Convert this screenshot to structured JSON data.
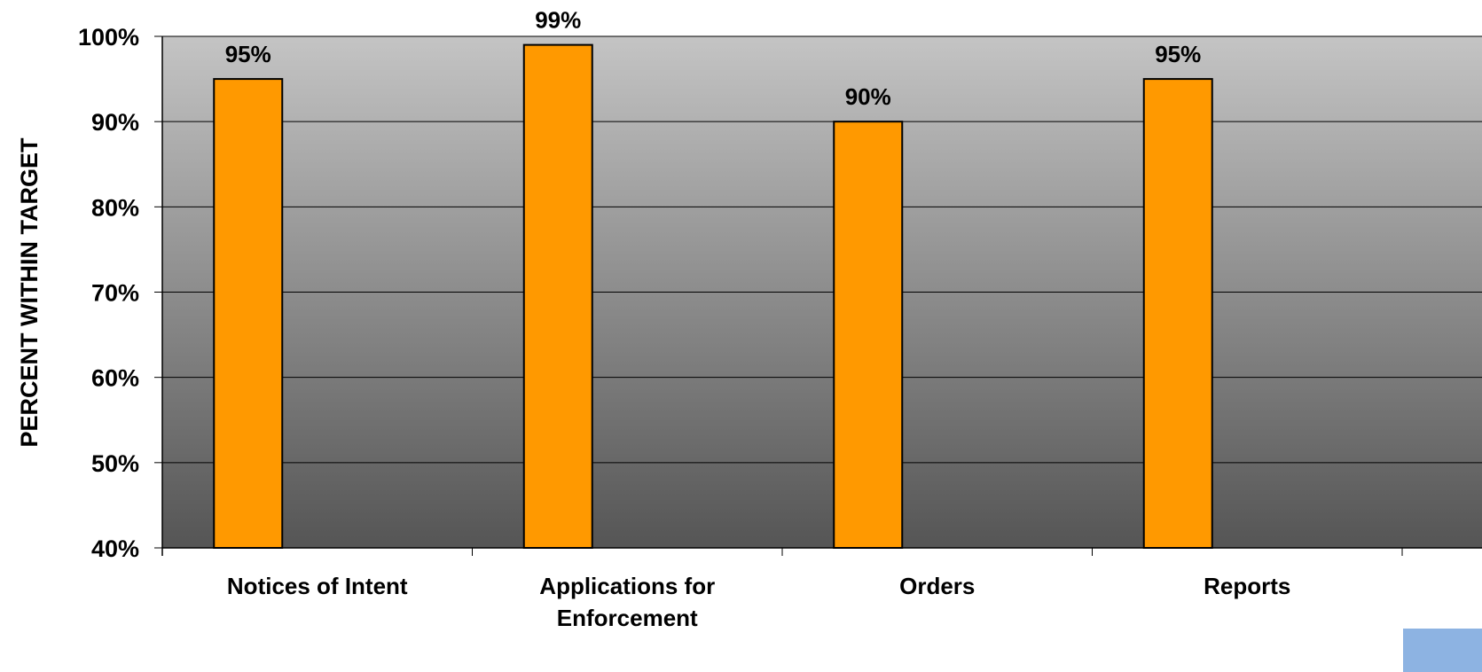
{
  "chart_data": {
    "type": "bar",
    "categories": [
      [
        "Notices of Intent"
      ],
      [
        "Applications for",
        "Enforcement"
      ],
      [
        "Orders"
      ],
      [
        "Reports"
      ]
    ],
    "values": [
      95,
      99,
      90,
      95
    ],
    "data_labels": [
      "95%",
      "99%",
      "90%",
      "95%"
    ],
    "ylabel": "PERCENT WITHIN TARGET",
    "xlabel": "",
    "ylim": [
      40,
      100
    ],
    "yticks": [
      40,
      50,
      60,
      70,
      80,
      90,
      100
    ],
    "ytick_labels": [
      "40%",
      "50%",
      "60%",
      "70%",
      "80%",
      "90%",
      "100%"
    ],
    "grid": true,
    "legend": "none"
  },
  "colors": {
    "bar_fill": "#ff9900",
    "bar_stroke": "#000000",
    "plot_bg_top": "#c4c4c4",
    "plot_bg_bottom": "#555555",
    "gridline": "#000000",
    "corner_block": "#8db3e2"
  }
}
